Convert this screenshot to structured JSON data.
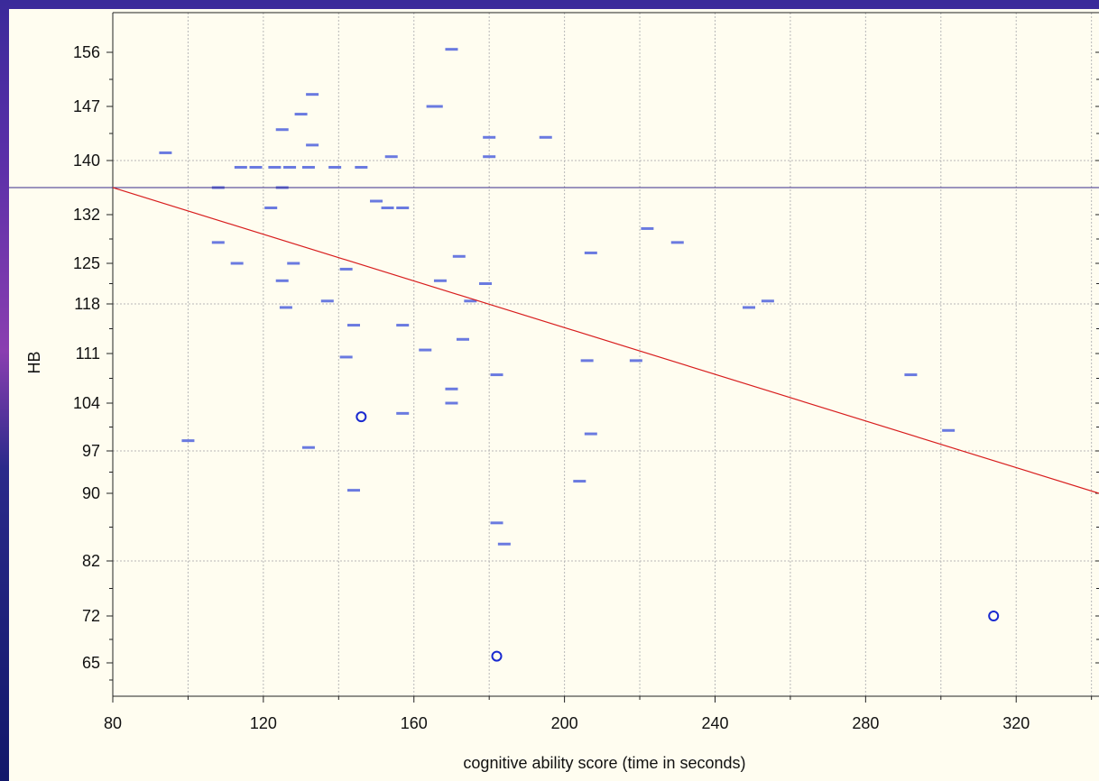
{
  "chart_data": {
    "type": "scatter",
    "xlabel": "cognitive ability score (time in seconds)",
    "ylabel": "HB",
    "xlim": [
      80,
      342
    ],
    "x_ticks": [
      80,
      120,
      160,
      200,
      240,
      280,
      320
    ],
    "y_ticks": [
      156,
      147,
      140,
      132,
      125,
      118,
      111,
      104,
      97,
      90,
      82,
      72,
      65
    ],
    "grid": true,
    "horizontal_reference_line": 136,
    "regression_line": [
      [
        80,
        136
      ],
      [
        342,
        90
      ]
    ],
    "colors": {
      "points": "#6a7ae0",
      "outliers": "#1a2ad0",
      "regression": "#d81e1e",
      "reference": "#3a2a8a",
      "grid": "#b8b8b8"
    },
    "points": [
      [
        94,
        141
      ],
      [
        100,
        98.5
      ],
      [
        108,
        136
      ],
      [
        108,
        128
      ],
      [
        113,
        125
      ],
      [
        114,
        139
      ],
      [
        118,
        139
      ],
      [
        122,
        133
      ],
      [
        123,
        139
      ],
      [
        125,
        136
      ],
      [
        125,
        144
      ],
      [
        125,
        122
      ],
      [
        126,
        117.5
      ],
      [
        127,
        139
      ],
      [
        128,
        125
      ],
      [
        130,
        146
      ],
      [
        132,
        139
      ],
      [
        132,
        97.5
      ],
      [
        133,
        149
      ],
      [
        133,
        142
      ],
      [
        137,
        118.5
      ],
      [
        139,
        139
      ],
      [
        142,
        110.5
      ],
      [
        142,
        124
      ],
      [
        144,
        115
      ],
      [
        144,
        90.5
      ],
      [
        146,
        139
      ],
      [
        150,
        134
      ],
      [
        153,
        133
      ],
      [
        154,
        140.5
      ],
      [
        157,
        133
      ],
      [
        157,
        115
      ],
      [
        157,
        102.5
      ],
      [
        163,
        111.5
      ],
      [
        165,
        147
      ],
      [
        166,
        147
      ],
      [
        167,
        122
      ],
      [
        170,
        156.5
      ],
      [
        170,
        106
      ],
      [
        170,
        104
      ],
      [
        172,
        126
      ],
      [
        173,
        113
      ],
      [
        175,
        118.5
      ],
      [
        179,
        121.5
      ],
      [
        180,
        140.5
      ],
      [
        180,
        143
      ],
      [
        182,
        108
      ],
      [
        182,
        86.5
      ],
      [
        184,
        84
      ],
      [
        195,
        143
      ],
      [
        204,
        92
      ],
      [
        206,
        110
      ],
      [
        207,
        126.5
      ],
      [
        207,
        99.5
      ],
      [
        219,
        110
      ],
      [
        222,
        130
      ],
      [
        230,
        128
      ],
      [
        249,
        117.5
      ],
      [
        254,
        118.5
      ],
      [
        292,
        108
      ],
      [
        302,
        100
      ]
    ],
    "outliers": [
      [
        146,
        102
      ],
      [
        182,
        66
      ],
      [
        314,
        72
      ]
    ]
  }
}
